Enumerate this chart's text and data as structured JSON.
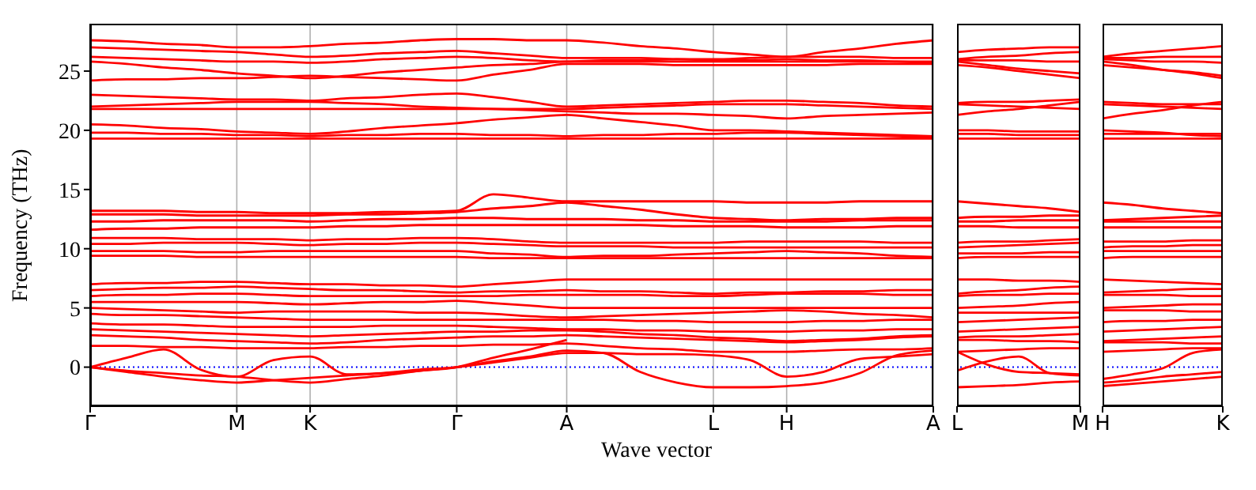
{
  "chart_data": [
    {
      "type": "line",
      "xlabel": "Wave vector",
      "ylabel": "Frequency (THz)",
      "categories": [
        "Γ",
        null,
        null,
        null,
        "M",
        null,
        "K",
        null,
        null,
        null,
        "Γ",
        null,
        null,
        "A",
        null,
        null,
        null,
        "L",
        null,
        "H",
        null,
        null,
        null,
        "A"
      ],
      "ylim": [
        -3.3,
        29
      ],
      "yticks": [
        0,
        5,
        10,
        15,
        20,
        25
      ],
      "grid": "x",
      "ref_lines": [
        {
          "axis": "y",
          "value": 0,
          "color": "#0000ff",
          "line_style": "dotted"
        }
      ],
      "series": [
        {
          "color": "#ff0000",
          "values": [
            27.6,
            27.5,
            27.3,
            27.2,
            27.0,
            27.0,
            27.1,
            27.3,
            27.4,
            27.6,
            27.7,
            27.7,
            27.6,
            27.6,
            27.4,
            27.1,
            26.9,
            26.6,
            26.4,
            26.2,
            26.6,
            26.9,
            27.3,
            27.6
          ]
        },
        {
          "color": "#ff0000",
          "values": [
            27.0,
            26.9,
            26.8,
            26.7,
            26.6,
            26.4,
            26.2,
            26.3,
            26.5,
            26.6,
            26.7,
            26.5,
            26.3,
            26.1,
            26.1,
            26.1,
            26.0,
            26.0,
            26.1,
            26.2,
            26.2,
            26.2,
            26.1,
            26.1
          ]
        },
        {
          "color": "#ff0000",
          "values": [
            26.2,
            26.1,
            26.0,
            25.9,
            25.8,
            25.8,
            25.7,
            25.8,
            26.0,
            26.1,
            26.2,
            26.1,
            25.9,
            25.8,
            25.9,
            25.9,
            26.0,
            25.9,
            25.9,
            26.0,
            25.9,
            25.9,
            25.8,
            25.7
          ]
        },
        {
          "color": "#ff0000",
          "values": [
            25.8,
            25.6,
            25.3,
            25.1,
            24.8,
            24.6,
            24.4,
            24.6,
            24.9,
            25.1,
            25.3,
            25.5,
            25.6,
            25.8,
            25.8,
            25.8,
            25.8,
            25.8,
            25.8,
            25.8,
            25.8,
            25.8,
            25.8,
            25.8
          ]
        },
        {
          "color": "#ff0000",
          "values": [
            24.2,
            24.3,
            24.3,
            24.4,
            24.4,
            24.5,
            24.6,
            24.5,
            24.4,
            24.3,
            24.2,
            24.7,
            25.1,
            25.6,
            25.6,
            25.6,
            25.5,
            25.5,
            25.5,
            25.5,
            25.5,
            25.6,
            25.6,
            25.6
          ]
        },
        {
          "color": "#ff0000",
          "values": [
            23.0,
            22.9,
            22.8,
            22.7,
            22.6,
            22.6,
            22.5,
            22.7,
            22.8,
            23.0,
            23.1,
            22.8,
            22.4,
            22.0,
            22.1,
            22.2,
            22.3,
            22.4,
            22.5,
            22.5,
            22.4,
            22.3,
            22.1,
            22.0
          ]
        },
        {
          "color": "#ff0000",
          "values": [
            22.0,
            22.1,
            22.2,
            22.3,
            22.4,
            22.4,
            22.4,
            22.3,
            22.2,
            22.0,
            21.9,
            21.8,
            21.7,
            21.6,
            21.5,
            21.4,
            21.4,
            21.3,
            21.2,
            21.0,
            21.2,
            21.3,
            21.4,
            21.5
          ]
        },
        {
          "color": "#ff0000",
          "values": [
            21.8,
            21.8,
            21.8,
            21.8,
            21.8,
            21.8,
            21.8,
            21.8,
            21.8,
            21.8,
            21.8,
            21.8,
            21.8,
            21.8,
            21.9,
            22.0,
            22.1,
            22.2,
            22.2,
            22.2,
            22.1,
            22.0,
            21.9,
            21.8
          ]
        },
        {
          "color": "#ff0000",
          "values": [
            20.5,
            20.4,
            20.2,
            20.1,
            19.9,
            19.8,
            19.7,
            19.9,
            20.2,
            20.4,
            20.6,
            20.9,
            21.1,
            21.3,
            21.0,
            20.7,
            20.4,
            20.0,
            20.0,
            19.9,
            19.8,
            19.7,
            19.6,
            19.5
          ]
        },
        {
          "color": "#ff0000",
          "values": [
            19.8,
            19.8,
            19.7,
            19.7,
            19.6,
            19.6,
            19.5,
            19.6,
            19.6,
            19.7,
            19.7,
            19.6,
            19.6,
            19.5,
            19.6,
            19.6,
            19.7,
            19.7,
            19.8,
            19.8,
            19.7,
            19.6,
            19.5,
            19.4
          ]
        },
        {
          "color": "#ff0000",
          "values": [
            19.3,
            19.3,
            19.3,
            19.3,
            19.3,
            19.3,
            19.3,
            19.3,
            19.3,
            19.3,
            19.3,
            19.3,
            19.3,
            19.3,
            19.3,
            19.3,
            19.3,
            19.3,
            19.3,
            19.3,
            19.3,
            19.3,
            19.3,
            19.3
          ]
        },
        {
          "color": "#ff0000",
          "values": [
            13.2,
            13.2,
            13.2,
            13.1,
            13.1,
            13.0,
            13.0,
            13.0,
            13.1,
            13.1,
            13.2,
            14.6,
            14.3,
            14.0,
            14.0,
            14.0,
            14.0,
            14.0,
            13.9,
            13.9,
            13.9,
            14.0,
            14.0,
            14.0
          ]
        },
        {
          "color": "#ff0000",
          "values": [
            12.9,
            12.9,
            12.9,
            12.8,
            12.8,
            12.8,
            12.8,
            12.9,
            12.9,
            13.0,
            13.1,
            13.4,
            13.6,
            13.9,
            13.6,
            13.3,
            12.9,
            12.6,
            12.5,
            12.4,
            12.5,
            12.5,
            12.6,
            12.6
          ]
        },
        {
          "color": "#ff0000",
          "values": [
            12.3,
            12.3,
            12.4,
            12.4,
            12.4,
            12.4,
            12.3,
            12.4,
            12.5,
            12.5,
            12.6,
            12.6,
            12.5,
            12.5,
            12.5,
            12.4,
            12.4,
            12.3,
            12.3,
            12.3,
            12.3,
            12.4,
            12.4,
            12.4
          ]
        },
        {
          "color": "#ff0000",
          "values": [
            11.6,
            11.7,
            11.7,
            11.8,
            11.8,
            11.8,
            11.8,
            11.9,
            11.9,
            12.0,
            12.0,
            12.0,
            12.0,
            12.0,
            12.0,
            12.0,
            11.9,
            11.9,
            11.9,
            11.8,
            11.8,
            11.8,
            11.9,
            11.9
          ]
        },
        {
          "color": "#ff0000",
          "values": [
            10.9,
            10.9,
            10.9,
            10.8,
            10.8,
            10.8,
            10.7,
            10.8,
            10.8,
            10.9,
            10.9,
            10.8,
            10.6,
            10.5,
            10.5,
            10.5,
            10.5,
            10.5,
            10.6,
            10.6,
            10.6,
            10.6,
            10.5,
            10.5
          ]
        },
        {
          "color": "#ff0000",
          "values": [
            10.4,
            10.4,
            10.5,
            10.5,
            10.5,
            10.4,
            10.3,
            10.4,
            10.4,
            10.5,
            10.5,
            10.4,
            10.3,
            10.2,
            10.2,
            10.2,
            10.1,
            10.1,
            10.1,
            10.1,
            10.1,
            10.1,
            10.1,
            10.1
          ]
        },
        {
          "color": "#ff0000",
          "values": [
            9.8,
            9.8,
            9.8,
            9.7,
            9.7,
            9.8,
            9.8,
            9.8,
            9.8,
            9.8,
            9.8,
            9.6,
            9.5,
            9.3,
            9.4,
            9.4,
            9.5,
            9.6,
            9.7,
            9.8,
            9.7,
            9.6,
            9.4,
            9.3
          ]
        },
        {
          "color": "#ff0000",
          "values": [
            9.4,
            9.4,
            9.4,
            9.3,
            9.3,
            9.3,
            9.3,
            9.3,
            9.3,
            9.3,
            9.3,
            9.2,
            9.2,
            9.2,
            9.2,
            9.2,
            9.2,
            9.2,
            9.2,
            9.2,
            9.2,
            9.2,
            9.2,
            9.2
          ]
        },
        {
          "color": "#ff0000",
          "values": [
            7.0,
            7.1,
            7.1,
            7.2,
            7.2,
            7.1,
            7.0,
            7.0,
            6.9,
            6.9,
            6.8,
            7.0,
            7.2,
            7.4,
            7.4,
            7.4,
            7.4,
            7.4,
            7.4,
            7.4,
            7.4,
            7.4,
            7.4,
            7.4
          ]
        },
        {
          "color": "#ff0000",
          "values": [
            6.5,
            6.6,
            6.7,
            6.7,
            6.8,
            6.7,
            6.6,
            6.5,
            6.5,
            6.4,
            6.3,
            6.4,
            6.4,
            6.5,
            6.4,
            6.4,
            6.3,
            6.2,
            6.3,
            6.3,
            6.4,
            6.4,
            6.5,
            6.5
          ]
        },
        {
          "color": "#ff0000",
          "values": [
            6.0,
            6.1,
            6.1,
            6.2,
            6.2,
            6.1,
            6.0,
            6.0,
            6.0,
            6.0,
            6.0,
            6.0,
            6.1,
            6.1,
            6.1,
            6.1,
            6.0,
            6.0,
            6.1,
            6.2,
            6.2,
            6.2,
            6.1,
            6.1
          ]
        },
        {
          "color": "#ff0000",
          "values": [
            5.5,
            5.5,
            5.5,
            5.5,
            5.5,
            5.4,
            5.3,
            5.4,
            5.5,
            5.5,
            5.6,
            5.4,
            5.2,
            5.0,
            5.0,
            5.0,
            5.0,
            5.0,
            5.0,
            5.0,
            5.0,
            5.0,
            5.0,
            5.0
          ]
        },
        {
          "color": "#ff0000",
          "values": [
            5.0,
            4.9,
            4.8,
            4.7,
            4.6,
            4.7,
            4.7,
            4.7,
            4.7,
            4.6,
            4.6,
            4.5,
            4.3,
            4.2,
            4.3,
            4.4,
            4.5,
            4.6,
            4.7,
            4.8,
            4.7,
            4.5,
            4.4,
            4.2
          ]
        },
        {
          "color": "#ff0000",
          "values": [
            4.5,
            4.4,
            4.4,
            4.3,
            4.2,
            4.1,
            4.0,
            4.0,
            4.0,
            4.0,
            4.0,
            4.0,
            4.0,
            4.0,
            4.0,
            3.9,
            3.9,
            3.8,
            3.8,
            3.8,
            3.9,
            3.9,
            4.0,
            4.0
          ]
        },
        {
          "color": "#ff0000",
          "values": [
            3.7,
            3.6,
            3.6,
            3.5,
            3.4,
            3.4,
            3.4,
            3.4,
            3.5,
            3.5,
            3.5,
            3.4,
            3.3,
            3.2,
            3.2,
            3.1,
            3.1,
            3.0,
            3.0,
            3.0,
            3.1,
            3.1,
            3.2,
            3.2
          ]
        },
        {
          "color": "#ff0000",
          "values": [
            3.2,
            3.1,
            3.0,
            2.9,
            2.8,
            2.7,
            2.6,
            2.7,
            2.8,
            2.9,
            3.0,
            3.0,
            3.1,
            3.1,
            3.0,
            2.8,
            2.7,
            2.5,
            2.4,
            2.2,
            2.3,
            2.4,
            2.6,
            2.7
          ]
        },
        {
          "color": "#ff0000",
          "values": [
            2.7,
            2.6,
            2.5,
            2.3,
            2.2,
            2.1,
            2.0,
            2.1,
            2.3,
            2.4,
            2.5,
            2.6,
            2.6,
            2.7,
            2.6,
            2.5,
            2.4,
            2.3,
            2.2,
            2.1,
            2.2,
            2.3,
            2.5,
            2.6
          ]
        },
        {
          "color": "#ff0000",
          "values": [
            1.8,
            1.8,
            1.7,
            1.7,
            1.6,
            1.6,
            1.6,
            1.7,
            1.7,
            1.8,
            1.8,
            1.9,
            1.9,
            2.0,
            1.8,
            1.6,
            1.5,
            1.3,
            1.3,
            1.3,
            1.4,
            1.5,
            1.5,
            1.6
          ]
        },
        {
          "color": "#ff0000",
          "values": [
            0,
            -0.4,
            -0.8,
            -1.1,
            -1.3,
            -1.1,
            -0.9,
            -0.7,
            -0.5,
            -0.2,
            0,
            0.5,
            0.9,
            1.4,
            1.2,
            -0.4,
            -1.3,
            -1.7,
            -1.7,
            -1.6,
            -1.3,
            -0.5,
            1.0,
            1.4
          ]
        },
        {
          "color": "#ff0000",
          "values": [
            0,
            -0.3,
            -0.5,
            -0.7,
            -0.8,
            -1.1,
            -1.3,
            -1.0,
            -0.7,
            -0.3,
            0,
            0.4,
            0.8,
            1.2,
            1.2,
            1.1,
            1.1,
            1.0,
            0.6,
            -0.8,
            -0.4,
            0.7,
            0.9,
            1.1
          ]
        },
        {
          "color": "#ff0000",
          "values": [
            0,
            0.8,
            1.5,
            -0.2,
            -0.8,
            0.6,
            0.9,
            -0.6,
            -0.5,
            -0.3,
            0,
            0.8,
            1.5,
            2.3,
            null,
            null,
            null,
            null,
            null,
            null,
            null,
            null,
            null,
            null
          ]
        }
      ]
    },
    {
      "type": "line",
      "categories": [
        "L",
        null,
        null,
        null,
        "M"
      ],
      "ylim": [
        -3.3,
        29
      ],
      "yticks": [
        0,
        5,
        10,
        15,
        20,
        25
      ],
      "tick_labels": "x",
      "ref_lines": [
        {
          "axis": "y",
          "value": 0,
          "color": "#0000ff",
          "line_style": "dotted"
        }
      ],
      "series": [
        {
          "color": "#ff0000",
          "values": [
            26.6,
            26.8,
            26.9,
            27.0,
            27.0
          ]
        },
        {
          "color": "#ff0000",
          "values": [
            26.0,
            26.2,
            26.3,
            26.5,
            26.6
          ]
        },
        {
          "color": "#ff0000",
          "values": [
            25.9,
            25.9,
            25.9,
            25.8,
            25.8
          ]
        },
        {
          "color": "#ff0000",
          "values": [
            25.8,
            25.5,
            25.2,
            25.0,
            24.8
          ]
        },
        {
          "color": "#ff0000",
          "values": [
            25.5,
            25.3,
            25.0,
            24.7,
            24.4
          ]
        },
        {
          "color": "#ff0000",
          "values": [
            22.3,
            22.4,
            22.4,
            22.5,
            22.6
          ]
        },
        {
          "color": "#ff0000",
          "values": [
            21.3,
            21.6,
            21.8,
            22.1,
            22.4
          ]
        },
        {
          "color": "#ff0000",
          "values": [
            22.2,
            22.1,
            22.0,
            21.9,
            21.8
          ]
        },
        {
          "color": "#ff0000",
          "values": [
            20.0,
            20.0,
            19.9,
            19.9,
            19.9
          ]
        },
        {
          "color": "#ff0000",
          "values": [
            19.7,
            19.7,
            19.6,
            19.6,
            19.6
          ]
        },
        {
          "color": "#ff0000",
          "values": [
            19.3,
            19.3,
            19.3,
            19.3,
            19.3
          ]
        },
        {
          "color": "#ff0000",
          "values": [
            14.0,
            13.8,
            13.6,
            13.4,
            13.1
          ]
        },
        {
          "color": "#ff0000",
          "values": [
            12.6,
            12.7,
            12.7,
            12.8,
            12.8
          ]
        },
        {
          "color": "#ff0000",
          "values": [
            12.3,
            12.3,
            12.4,
            12.4,
            12.4
          ]
        },
        {
          "color": "#ff0000",
          "values": [
            11.9,
            11.9,
            11.8,
            11.8,
            11.8
          ]
        },
        {
          "color": "#ff0000",
          "values": [
            10.5,
            10.6,
            10.6,
            10.7,
            10.8
          ]
        },
        {
          "color": "#ff0000",
          "values": [
            10.1,
            10.2,
            10.3,
            10.4,
            10.5
          ]
        },
        {
          "color": "#ff0000",
          "values": [
            9.6,
            9.6,
            9.6,
            9.7,
            9.7
          ]
        },
        {
          "color": "#ff0000",
          "values": [
            9.2,
            9.3,
            9.3,
            9.3,
            9.3
          ]
        },
        {
          "color": "#ff0000",
          "values": [
            7.4,
            7.4,
            7.3,
            7.3,
            7.2
          ]
        },
        {
          "color": "#ff0000",
          "values": [
            6.2,
            6.4,
            6.5,
            6.7,
            6.8
          ]
        },
        {
          "color": "#ff0000",
          "values": [
            6.0,
            6.1,
            6.1,
            6.2,
            6.2
          ]
        },
        {
          "color": "#ff0000",
          "values": [
            5.0,
            5.1,
            5.2,
            5.4,
            5.5
          ]
        },
        {
          "color": "#ff0000",
          "values": [
            4.6,
            4.6,
            4.6,
            4.6,
            4.6
          ]
        },
        {
          "color": "#ff0000",
          "values": [
            3.8,
            3.9,
            4.0,
            4.1,
            4.2
          ]
        },
        {
          "color": "#ff0000",
          "values": [
            3.0,
            3.1,
            3.2,
            3.3,
            3.4
          ]
        },
        {
          "color": "#ff0000",
          "values": [
            2.5,
            2.6,
            2.6,
            2.7,
            2.8
          ]
        },
        {
          "color": "#ff0000",
          "values": [
            2.3,
            2.3,
            2.2,
            2.2,
            2.1
          ]
        },
        {
          "color": "#ff0000",
          "values": [
            1.3,
            1.4,
            1.5,
            1.6,
            1.6
          ]
        },
        {
          "color": "#ff0000",
          "values": [
            1.3,
            0.2,
            -0.4,
            -0.5,
            -0.6
          ]
        },
        {
          "color": "#ff0000",
          "values": [
            -0.3,
            0.5,
            0.9,
            -0.5,
            -0.7
          ]
        },
        {
          "color": "#ff0000",
          "values": [
            -1.7,
            -1.6,
            -1.5,
            -1.3,
            -1.2
          ]
        }
      ]
    },
    {
      "type": "line",
      "categories": [
        "H",
        null,
        null,
        null,
        "K"
      ],
      "ylim": [
        -3.3,
        29
      ],
      "yticks": [
        0,
        5,
        10,
        15,
        20,
        25
      ],
      "tick_labels": "x",
      "ref_lines": [
        {
          "axis": "y",
          "value": 0,
          "color": "#0000ff",
          "line_style": "dotted"
        }
      ],
      "series": [
        {
          "color": "#ff0000",
          "values": [
            26.2,
            26.5,
            26.7,
            26.9,
            27.1
          ]
        },
        {
          "color": "#ff0000",
          "values": [
            26.1,
            26.1,
            26.2,
            26.2,
            26.2
          ]
        },
        {
          "color": "#ff0000",
          "values": [
            26.0,
            25.9,
            25.8,
            25.8,
            25.7
          ]
        },
        {
          "color": "#ff0000",
          "values": [
            25.8,
            25.5,
            25.1,
            24.8,
            24.4
          ]
        },
        {
          "color": "#ff0000",
          "values": [
            25.5,
            25.3,
            25.1,
            24.9,
            24.6
          ]
        },
        {
          "color": "#ff0000",
          "values": [
            22.4,
            22.3,
            22.2,
            22.2,
            22.2
          ]
        },
        {
          "color": "#ff0000",
          "values": [
            21.0,
            21.4,
            21.7,
            22.1,
            22.4
          ]
        },
        {
          "color": "#ff0000",
          "values": [
            22.2,
            22.1,
            22.0,
            21.9,
            21.8
          ]
        },
        {
          "color": "#ff0000",
          "values": [
            19.7,
            19.7,
            19.7,
            19.7,
            19.7
          ]
        },
        {
          "color": "#ff0000",
          "values": [
            20.0,
            19.9,
            19.8,
            19.6,
            19.5
          ]
        },
        {
          "color": "#ff0000",
          "values": [
            19.3,
            19.3,
            19.3,
            19.3,
            19.3
          ]
        },
        {
          "color": "#ff0000",
          "values": [
            13.9,
            13.7,
            13.4,
            13.2,
            13.0
          ]
        },
        {
          "color": "#ff0000",
          "values": [
            12.4,
            12.5,
            12.6,
            12.7,
            12.8
          ]
        },
        {
          "color": "#ff0000",
          "values": [
            12.3,
            12.3,
            12.3,
            12.3,
            12.3
          ]
        },
        {
          "color": "#ff0000",
          "values": [
            11.8,
            11.8,
            11.8,
            11.8,
            11.8
          ]
        },
        {
          "color": "#ff0000",
          "values": [
            10.6,
            10.6,
            10.6,
            10.7,
            10.7
          ]
        },
        {
          "color": "#ff0000",
          "values": [
            10.1,
            10.2,
            10.2,
            10.3,
            10.3
          ]
        },
        {
          "color": "#ff0000",
          "values": [
            9.8,
            9.8,
            9.8,
            9.8,
            9.8
          ]
        },
        {
          "color": "#ff0000",
          "values": [
            9.2,
            9.3,
            9.3,
            9.3,
            9.3
          ]
        },
        {
          "color": "#ff0000",
          "values": [
            7.4,
            7.3,
            7.2,
            7.1,
            7.0
          ]
        },
        {
          "color": "#ff0000",
          "values": [
            6.3,
            6.4,
            6.5,
            6.6,
            6.6
          ]
        },
        {
          "color": "#ff0000",
          "values": [
            6.1,
            6.1,
            6.1,
            6.0,
            6.0
          ]
        },
        {
          "color": "#ff0000",
          "values": [
            5.0,
            5.1,
            5.2,
            5.3,
            5.3
          ]
        },
        {
          "color": "#ff0000",
          "values": [
            4.8,
            4.8,
            4.8,
            4.7,
            4.7
          ]
        },
        {
          "color": "#ff0000",
          "values": [
            3.8,
            3.9,
            3.9,
            4.0,
            4.0
          ]
        },
        {
          "color": "#ff0000",
          "values": [
            3.0,
            3.1,
            3.2,
            3.3,
            3.4
          ]
        },
        {
          "color": "#ff0000",
          "values": [
            2.2,
            2.3,
            2.4,
            2.5,
            2.6
          ]
        },
        {
          "color": "#ff0000",
          "values": [
            2.1,
            2.1,
            2.1,
            2.0,
            2.0
          ]
        },
        {
          "color": "#ff0000",
          "values": [
            1.3,
            1.4,
            1.5,
            1.6,
            1.6
          ]
        },
        {
          "color": "#ff0000",
          "values": [
            -1.0,
            -0.6,
            -0.1,
            1.2,
            1.5
          ]
        },
        {
          "color": "#ff0000",
          "values": [
            -1.6,
            -1.4,
            -1.2,
            -1.0,
            -0.8
          ]
        },
        {
          "color": "#ff0000",
          "values": [
            -1.3,
            -1.1,
            -0.8,
            -0.6,
            -0.4
          ]
        }
      ]
    }
  ]
}
